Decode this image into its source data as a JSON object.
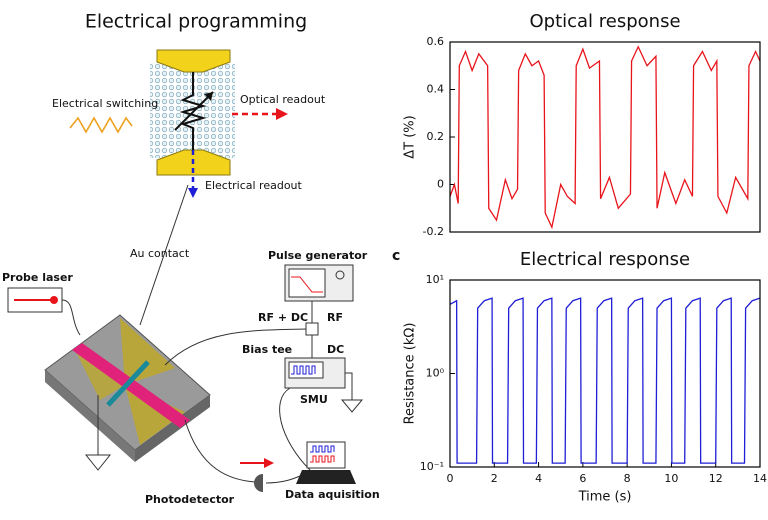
{
  "diagram": {
    "title": "Electrical programming",
    "labels": [
      "Electrical switching",
      "Optical readout",
      "Electrical readout",
      "Au contact",
      "Probe laser",
      "Pulse generator",
      "RF + DC",
      "RF",
      "Bias tee",
      "DC",
      "SMU",
      "Photodetector",
      "Data aquisition"
    ]
  },
  "chart_data": [
    {
      "type": "line",
      "title": "Optical response",
      "ylabel": "ΔT (%)",
      "color": "#e8141b",
      "xlim": [
        0,
        14
      ],
      "ylim": [
        -0.2,
        0.6
      ],
      "yticks": [
        -0.2,
        0,
        0.2,
        0.4,
        0.6
      ],
      "x": [
        0,
        0.2,
        0.37,
        0.42,
        0.7,
        1.0,
        1.3,
        1.7,
        1.75,
        2.1,
        2.5,
        2.8,
        3.05,
        3.1,
        3.4,
        3.7,
        4.0,
        4.25,
        4.3,
        4.6,
        5.0,
        5.3,
        5.65,
        5.7,
        6.0,
        6.3,
        6.75,
        6.8,
        7.2,
        7.6,
        8.15,
        8.2,
        8.5,
        8.9,
        9.3,
        9.35,
        9.7,
        10.2,
        10.6,
        10.95,
        11.0,
        11.4,
        11.8,
        12.05,
        12.1,
        12.5,
        12.9,
        13.45,
        13.5,
        13.8,
        14
      ],
      "values": [
        -0.05,
        0.0,
        -0.08,
        0.5,
        0.56,
        0.48,
        0.55,
        0.5,
        -0.1,
        -0.15,
        0.02,
        -0.06,
        -0.02,
        0.48,
        0.55,
        0.5,
        0.52,
        0.46,
        -0.12,
        -0.18,
        0.0,
        -0.05,
        -0.08,
        0.5,
        0.57,
        0.49,
        0.52,
        -0.06,
        0.03,
        -0.1,
        -0.04,
        0.52,
        0.58,
        0.5,
        0.54,
        -0.1,
        0.05,
        -0.08,
        0.02,
        -0.05,
        0.5,
        0.56,
        0.48,
        0.52,
        -0.05,
        -0.12,
        0.03,
        -0.06,
        0.5,
        0.56,
        0.52
      ]
    },
    {
      "type": "line",
      "panel": "c",
      "title": "Electrical response",
      "xlabel": "Time (s)",
      "ylabel": "Resistance (kΩ)",
      "color": "#1f1fd6",
      "log": true,
      "xlim": [
        0,
        14
      ],
      "ylim": [
        0.1,
        10
      ],
      "xticks": [
        0,
        2,
        4,
        6,
        8,
        10,
        12,
        14
      ],
      "yticks": [
        {
          "value": 0.1,
          "label": "10⁻¹"
        },
        {
          "value": 1,
          "label": "10⁰"
        },
        {
          "value": 10,
          "label": "10¹"
        }
      ],
      "x": [
        0,
        0.3,
        0.32,
        1.2,
        1.25,
        1.55,
        1.9,
        1.92,
        2.6,
        2.65,
        2.95,
        3.3,
        3.32,
        3.9,
        3.95,
        4.25,
        4.6,
        4.62,
        5.2,
        5.25,
        5.55,
        5.9,
        5.92,
        6.6,
        6.65,
        6.95,
        7.3,
        7.32,
        8.0,
        8.05,
        8.35,
        8.7,
        8.72,
        9.3,
        9.35,
        9.65,
        10.0,
        10.02,
        10.6,
        10.65,
        10.95,
        11.3,
        11.32,
        12.0,
        12.05,
        12.35,
        12.7,
        12.72,
        13.3,
        13.35,
        13.65,
        14.0
      ],
      "values": [
        5.5,
        6,
        0.11,
        0.11,
        5,
        6,
        6.4,
        0.11,
        0.11,
        5,
        6,
        6.4,
        0.11,
        0.11,
        5,
        6,
        6.4,
        0.11,
        0.11,
        5,
        6,
        6.4,
        0.11,
        0.11,
        5,
        6,
        6.4,
        0.11,
        0.11,
        5,
        6,
        6.4,
        0.11,
        0.11,
        5,
        6,
        6.4,
        0.11,
        0.11,
        5,
        6,
        6.4,
        0.11,
        0.11,
        5,
        6,
        6.4,
        0.11,
        0.11,
        5,
        6,
        6.4
      ]
    }
  ]
}
